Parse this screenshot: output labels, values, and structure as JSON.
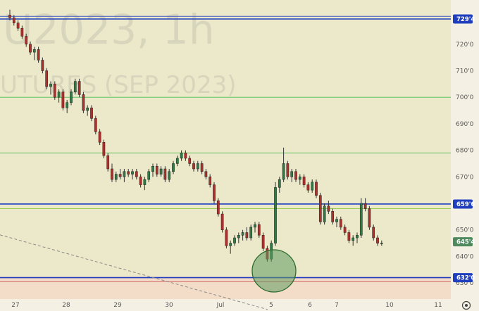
{
  "watermark": {
    "symbol": "U2023, 1h",
    "description": "UTURES (SEP 2023)"
  },
  "price_axis": {
    "labels": [
      {
        "price": 720.0,
        "text": "720'0"
      },
      {
        "price": 710.0,
        "text": "710'0"
      },
      {
        "price": 700.0,
        "text": "700'0"
      },
      {
        "price": 690.0,
        "text": "690'0"
      },
      {
        "price": 680.0,
        "text": "680'0"
      },
      {
        "price": 670.0,
        "text": "670'0"
      },
      {
        "price": 650.0,
        "text": "650'0"
      },
      {
        "price": 640.0,
        "text": "640'0"
      },
      {
        "price": 630.0,
        "text": "630'0"
      }
    ]
  },
  "date_axis": {
    "labels": [
      "27",
      "28",
      "29",
      "30",
      "Jul",
      "5",
      "6",
      "7",
      "10",
      "11"
    ]
  },
  "level_badges": [
    {
      "text": "729'4",
      "price": 729.5,
      "color": "#1f3fbf"
    },
    {
      "text": "659'6",
      "price": 659.75,
      "color": "#1f3fbf"
    },
    {
      "text": "645'4",
      "price": 645.5,
      "color": "#4e8a5e"
    },
    {
      "text": "632'0",
      "price": 632.0,
      "color": "#1f3fbf"
    }
  ],
  "horizontal_lines": [
    {
      "price": 730.5,
      "color": "#3b57c4"
    },
    {
      "price": 729.5,
      "color": "#1f3fbf"
    },
    {
      "price": 700.0,
      "color": "#5cc25c"
    },
    {
      "price": 679.0,
      "color": "#5cc25c"
    },
    {
      "price": 659.75,
      "color": "#1f3fbf"
    },
    {
      "price": 658.0,
      "color": "#9acd50"
    },
    {
      "price": 632.0,
      "color": "#1f3fbf"
    },
    {
      "price": 630.5,
      "color": "#d26464"
    }
  ],
  "colors": {
    "bull": "#2e7d46",
    "bear": "#b0302d",
    "wick": "#333333",
    "highlight_fill": "#5f9b5f",
    "highlight_stroke": "#2f6b2f"
  },
  "settings_icon": "gear-icon",
  "candles": [
    [
      731,
      733,
      729,
      730
    ],
    [
      730,
      731,
      727,
      728
    ],
    [
      728,
      729,
      725,
      726
    ],
    [
      726,
      727,
      722,
      723
    ],
    [
      723,
      724,
      719,
      720
    ],
    [
      720,
      721,
      716,
      717
    ],
    [
      717,
      719,
      714,
      718
    ],
    [
      718,
      719,
      713,
      714
    ],
    [
      714,
      715,
      709,
      710
    ],
    [
      710,
      711,
      703,
      704
    ],
    [
      704,
      706,
      701,
      705
    ],
    [
      705,
      706,
      699,
      700
    ],
    [
      700,
      703,
      698,
      702
    ],
    [
      702,
      703,
      695,
      696
    ],
    [
      696,
      699,
      694,
      698
    ],
    [
      698,
      703,
      697,
      702
    ],
    [
      702,
      707,
      701,
      706
    ],
    [
      706,
      707,
      700,
      701
    ],
    [
      701,
      702,
      694,
      695
    ],
    [
      695,
      697,
      693,
      696
    ],
    [
      696,
      697,
      691,
      692
    ],
    [
      692,
      693,
      686,
      687
    ],
    [
      687,
      688,
      682,
      683
    ],
    [
      683,
      684,
      677,
      678
    ],
    [
      678,
      679,
      672,
      673
    ],
    [
      673,
      675,
      668,
      669
    ],
    [
      669,
      672,
      668,
      671
    ],
    [
      671,
      673,
      669,
      670
    ],
    [
      670,
      673,
      668,
      672
    ],
    [
      672,
      673,
      670,
      671
    ],
    [
      671,
      673,
      669,
      672
    ],
    [
      672,
      673,
      669,
      670
    ],
    [
      670,
      671,
      666,
      667
    ],
    [
      667,
      670,
      665,
      669
    ],
    [
      669,
      673,
      668,
      672
    ],
    [
      672,
      675,
      670,
      674
    ],
    [
      674,
      675,
      670,
      671
    ],
    [
      671,
      674,
      670,
      673
    ],
    [
      673,
      674,
      668,
      669
    ],
    [
      669,
      673,
      668,
      672
    ],
    [
      672,
      676,
      671,
      675
    ],
    [
      675,
      678,
      674,
      677
    ],
    [
      677,
      680,
      676,
      679
    ],
    [
      679,
      680,
      676,
      677
    ],
    [
      677,
      678,
      674,
      675
    ],
    [
      675,
      676,
      672,
      673
    ],
    [
      673,
      676,
      672,
      675
    ],
    [
      675,
      676,
      671,
      672
    ],
    [
      672,
      673,
      669,
      670
    ],
    [
      670,
      671,
      666,
      667
    ],
    [
      667,
      668,
      660,
      661
    ],
    [
      661,
      662,
      655,
      656
    ],
    [
      656,
      657,
      649,
      650
    ],
    [
      650,
      651,
      643,
      644
    ],
    [
      644,
      646,
      641,
      645
    ],
    [
      645,
      648,
      644,
      647
    ],
    [
      647,
      649,
      645,
      648
    ],
    [
      648,
      650,
      646,
      649
    ],
    [
      649,
      651,
      646,
      647
    ],
    [
      647,
      652,
      646,
      651
    ],
    [
      651,
      653,
      649,
      652
    ],
    [
      652,
      653,
      647,
      648
    ],
    [
      648,
      649,
      642,
      643
    ],
    [
      643,
      644,
      638,
      639
    ],
    [
      639,
      646,
      638,
      645
    ],
    [
      645,
      668,
      644,
      666
    ],
    [
      666,
      670,
      664,
      669
    ],
    [
      669,
      681,
      668,
      675
    ],
    [
      675,
      676,
      669,
      670
    ],
    [
      670,
      673,
      668,
      672
    ],
    [
      672,
      673,
      668,
      669
    ],
    [
      669,
      671,
      667,
      670
    ],
    [
      670,
      671,
      666,
      667
    ],
    [
      667,
      668,
      664,
      665
    ],
    [
      665,
      669,
      664,
      668
    ],
    [
      668,
      669,
      662,
      663
    ],
    [
      663,
      664,
      652,
      653
    ],
    [
      653,
      660,
      652,
      659
    ],
    [
      659,
      661,
      656,
      657
    ],
    [
      657,
      658,
      652,
      653
    ],
    [
      653,
      655,
      651,
      654
    ],
    [
      654,
      655,
      650,
      651
    ],
    [
      651,
      652,
      648,
      649
    ],
    [
      649,
      650,
      645,
      646
    ],
    [
      646,
      648,
      644,
      647
    ],
    [
      647,
      649,
      645,
      648
    ],
    [
      648,
      662,
      647,
      660
    ],
    [
      660,
      662,
      657,
      658
    ],
    [
      658,
      659,
      650,
      651
    ],
    [
      651,
      652,
      646,
      647
    ],
    [
      647,
      648,
      644,
      645
    ],
    [
      645,
      646,
      644,
      645
    ]
  ],
  "candle_x": {
    "first": 14.0,
    "step": 5.8
  },
  "trendline_prices": {
    "start": 646.0,
    "end": 629.0
  }
}
